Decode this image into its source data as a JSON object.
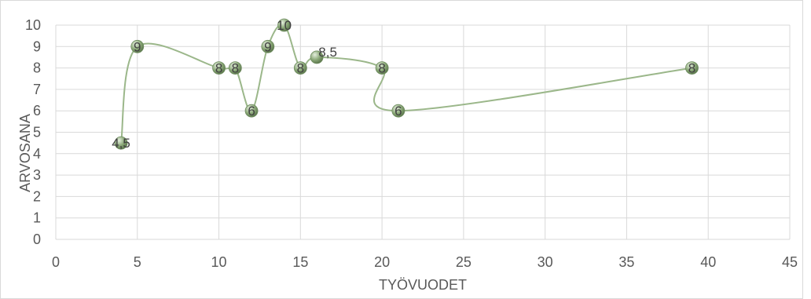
{
  "chart_data": {
    "type": "scatter",
    "smooth_line": true,
    "xlabel": "TYÖVUODET",
    "ylabel": "ARVOSANA",
    "xlim": [
      0,
      45
    ],
    "ylim": [
      0,
      10
    ],
    "x_ticks": [
      0,
      5,
      10,
      15,
      20,
      25,
      30,
      35,
      40,
      45
    ],
    "y_ticks": [
      0,
      1,
      2,
      3,
      4,
      5,
      6,
      7,
      8,
      9,
      10
    ],
    "grid": true,
    "legend": "none",
    "colors": {
      "line": "#9bb78a",
      "marker": "#8aa877",
      "marker_edge": "#ffffff",
      "grid": "#d9d9d9"
    },
    "points": [
      {
        "x": 4,
        "y": 4.5,
        "label": "4,5"
      },
      {
        "x": 5,
        "y": 9,
        "label": "9"
      },
      {
        "x": 10,
        "y": 8,
        "label": "8"
      },
      {
        "x": 11,
        "y": 8,
        "label": "8"
      },
      {
        "x": 12,
        "y": 6,
        "label": "6"
      },
      {
        "x": 13,
        "y": 9,
        "label": "9"
      },
      {
        "x": 14,
        "y": 10,
        "label": "10"
      },
      {
        "x": 15,
        "y": 8,
        "label": "8"
      },
      {
        "x": 16,
        "y": 8.5,
        "label": "8,5"
      },
      {
        "x": 20,
        "y": 8,
        "label": "8"
      },
      {
        "x": 21,
        "y": 6,
        "label": "6"
      },
      {
        "x": 39,
        "y": 8,
        "label": "8"
      }
    ]
  }
}
